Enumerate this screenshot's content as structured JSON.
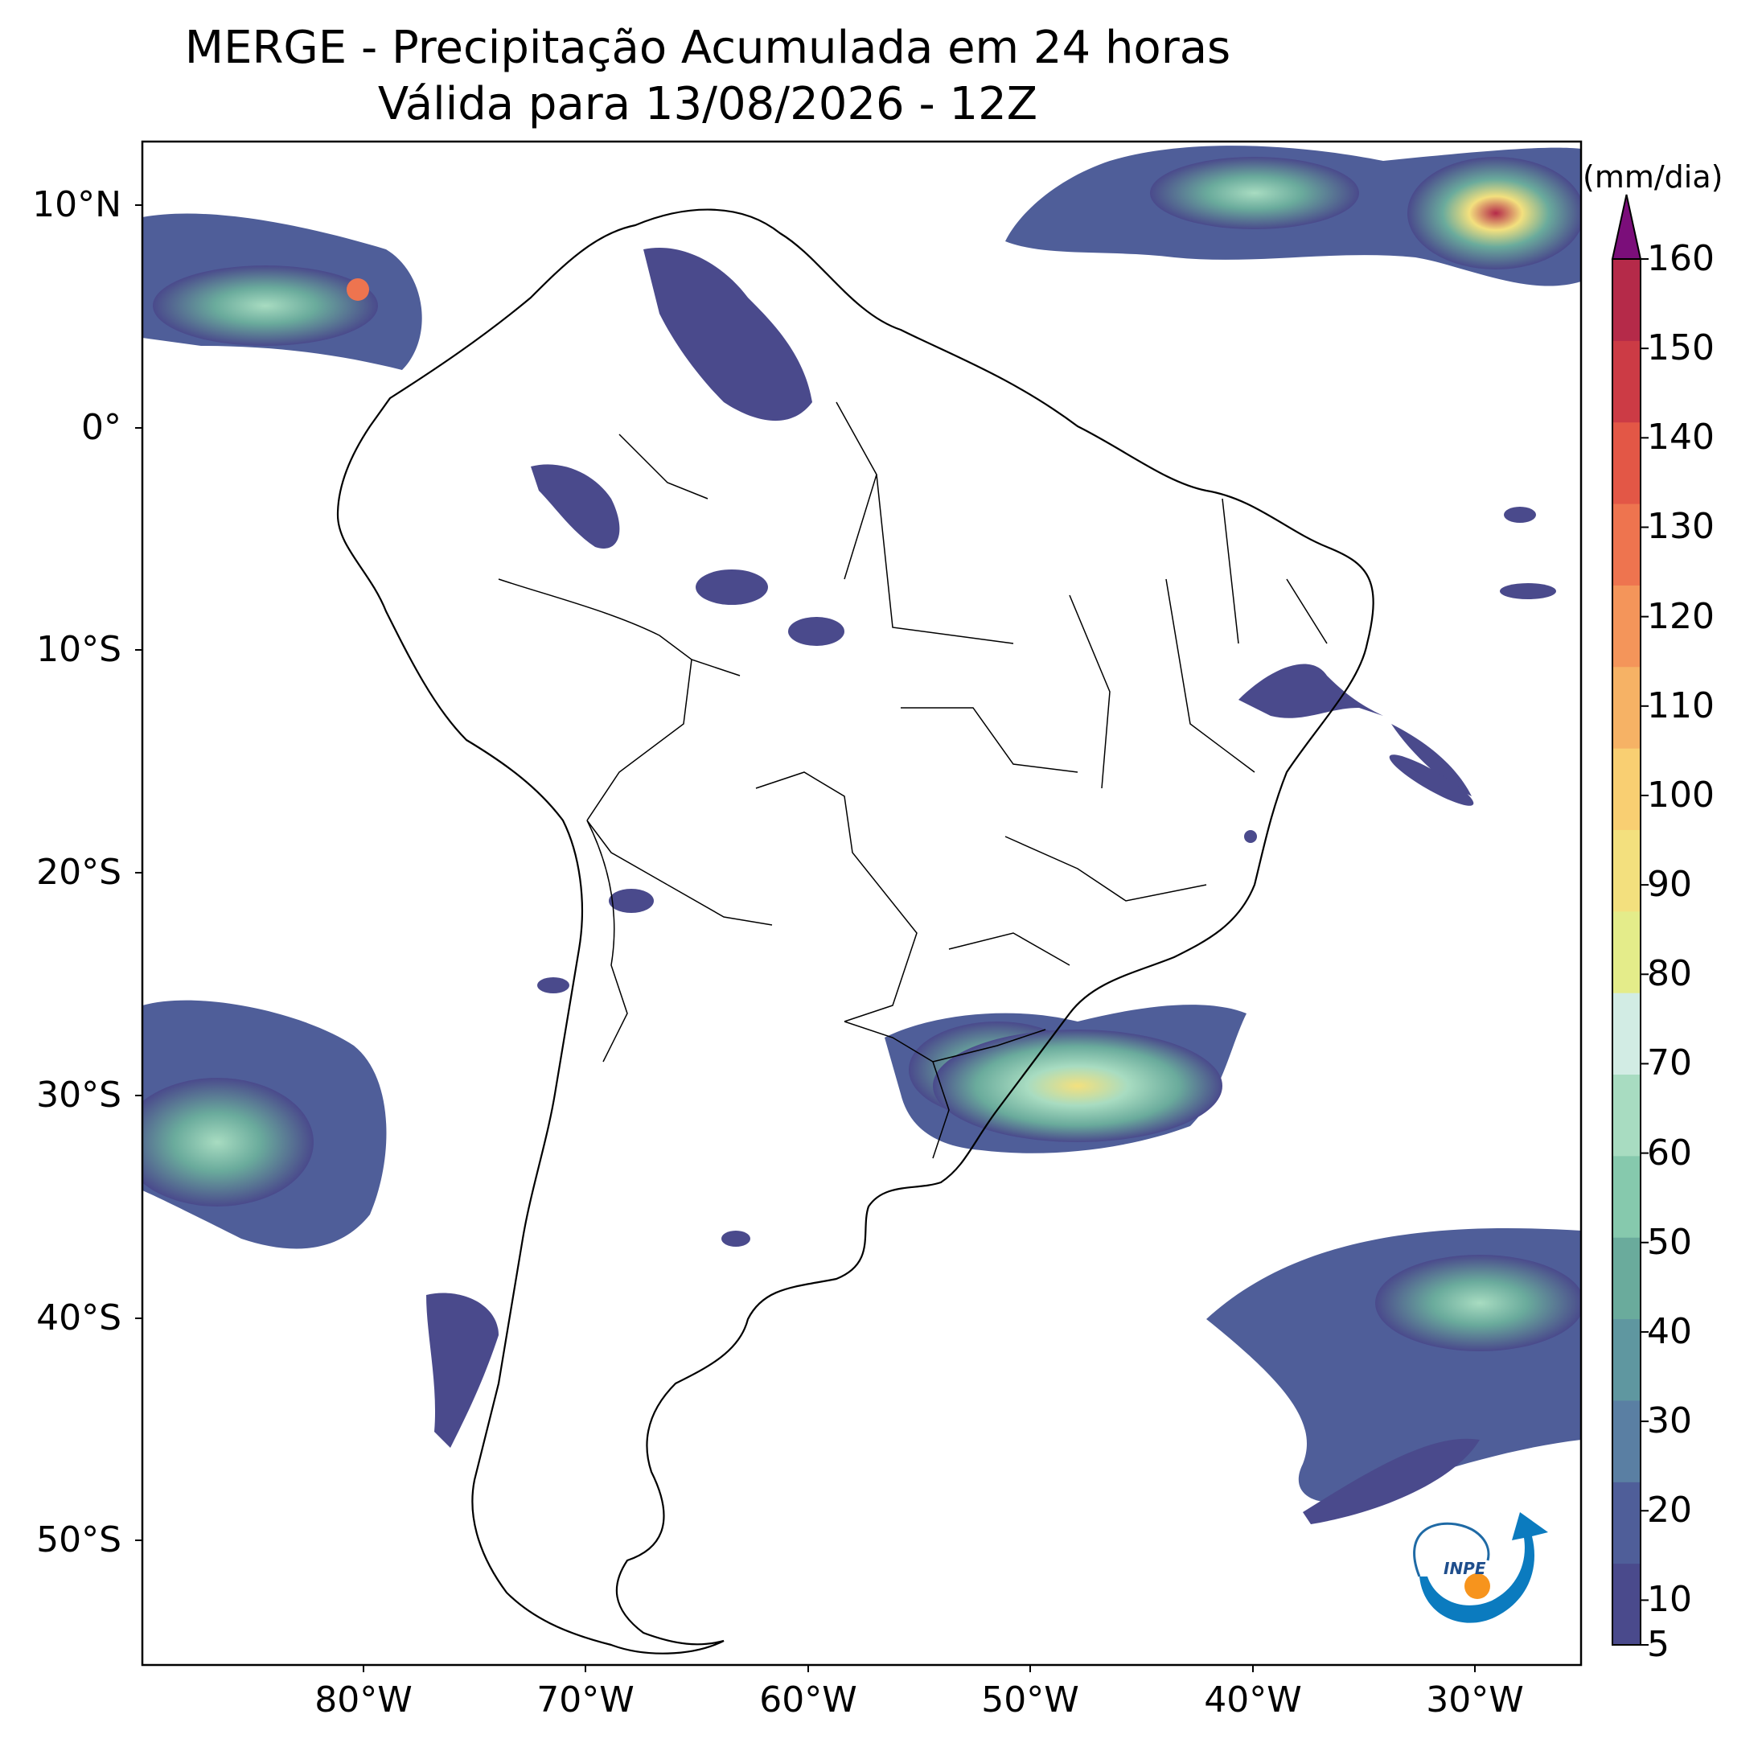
{
  "header": {
    "title": "MERGE - Precipitação Acumulada em 24 horas",
    "subtitle": "Válida para 13/08/2026 - 12Z"
  },
  "axes": {
    "lat_labels": [
      "10°N",
      "0°",
      "10°S",
      "20°S",
      "30°S",
      "40°S",
      "50°S"
    ],
    "lon_labels": [
      "80°W",
      "70°W",
      "60°W",
      "50°W",
      "40°W",
      "30°W"
    ]
  },
  "colorbar": {
    "unit": "(mm/dia)",
    "ticks": [
      "5",
      "10",
      "20",
      "30",
      "40",
      "50",
      "60",
      "70",
      "80",
      "90",
      "100",
      "110",
      "120",
      "130",
      "140",
      "150",
      "160"
    ],
    "colors": [
      "#4a4a8c",
      "#4f5e99",
      "#5a7fa3",
      "#5f97a0",
      "#6aab9c",
      "#86c9ad",
      "#a8dcc1",
      "#d2ece4",
      "#e4ec8a",
      "#f3e07e",
      "#f9cf72",
      "#f6b265",
      "#f4955a",
      "#ee744f",
      "#e35746",
      "#cc3b45",
      "#b52a49"
    ],
    "extend_color": "#7b0e7a"
  },
  "logo": {
    "text": "INPE"
  }
}
